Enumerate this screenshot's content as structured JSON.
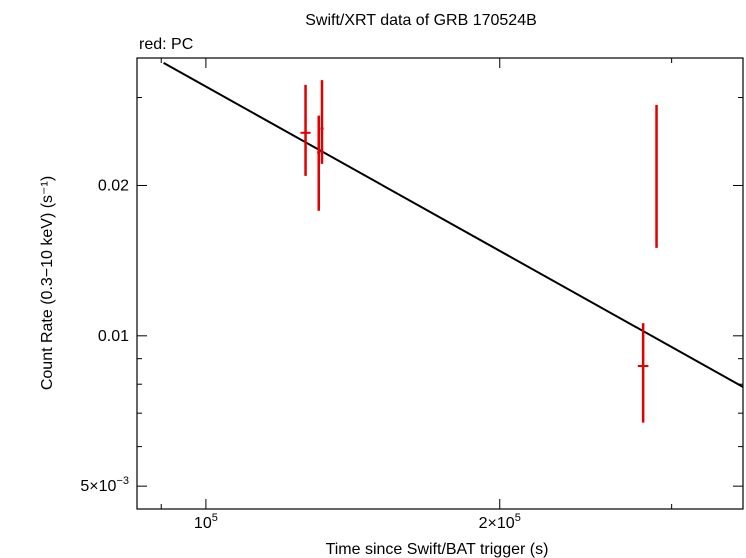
{
  "chart_data": {
    "type": "scatter",
    "title": "Swift/XRT data of GRB 170524B",
    "subtitle": "red: PC",
    "xlabel": "Time since Swift/BAT trigger (s)",
    "ylabel": "Count Rate (0.3−10 keV) (s⁻¹)",
    "x_scale": "log",
    "y_scale": "log",
    "xlim": [
      85000,
      355000
    ],
    "ylim": [
      0.0045,
      0.036
    ],
    "x_ticks": [
      {
        "value": 100000,
        "mantissa": "10",
        "exp": "5"
      },
      {
        "value": 200000,
        "mantissa": "2×10",
        "exp": "5"
      }
    ],
    "y_ticks": [
      {
        "value": 0.005,
        "mantissa": "5×10",
        "exp": "−3"
      },
      {
        "value": 0.01,
        "mantissa": "0.01",
        "exp": ""
      },
      {
        "value": 0.02,
        "mantissa": "0.02",
        "exp": ""
      }
    ],
    "series": [
      {
        "color": "#e00000",
        "points": [
          {
            "x": 126500,
            "xerr": [
              1500,
              1500
            ],
            "y": 0.0255,
            "yerr": [
              0.0209,
              0.0318
            ]
          },
          {
            "x": 130500,
            "xerr": [
              500,
              500
            ],
            "y": 0.0233,
            "yerr": [
              0.0178,
              0.0276
            ]
          },
          {
            "x": 131500,
            "xerr": [
              500,
              500
            ],
            "y": 0.026,
            "yerr": [
              0.0221,
              0.0325
            ]
          },
          {
            "x": 280500,
            "xerr": [
              3500,
              3500
            ],
            "y": 0.0087,
            "yerr": [
              0.0067,
              0.0106
            ]
          },
          {
            "x": 289500,
            "xerr": [
              500,
              500
            ],
            "y": 0.0207,
            "yerr": [
              0.015,
              0.029
            ]
          }
        ]
      }
    ],
    "model_line": {
      "color": "#000000",
      "points": [
        {
          "x": 90500,
          "y": 0.0352
        },
        {
          "x": 355000,
          "y": 0.0079
        }
      ]
    }
  }
}
